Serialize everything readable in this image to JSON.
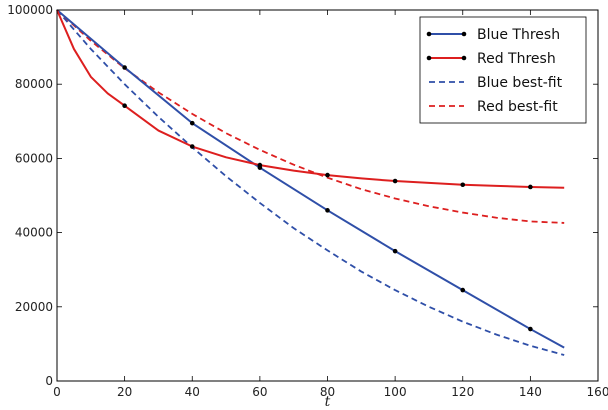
{
  "chart_data": {
    "type": "line",
    "xlabel": "t",
    "ylabel": "",
    "xlim": [
      0,
      160
    ],
    "ylim": [
      0,
      100000
    ],
    "xticks": [
      0,
      20,
      40,
      60,
      80,
      100,
      120,
      140,
      160
    ],
    "yticks": [
      0,
      20000,
      40000,
      60000,
      80000,
      100000
    ],
    "grid": false,
    "legend_position": "top-right",
    "series": [
      {
        "name": "Blue Thresh",
        "style": "solid",
        "color": "#2F4FA8",
        "markers": true,
        "x": [
          0,
          20,
          40,
          60,
          80,
          100,
          120,
          140,
          150
        ],
        "y": [
          100000,
          84500,
          69500,
          57500,
          46000,
          35000,
          24500,
          14000,
          9000
        ],
        "marker_x": [
          20,
          40,
          60,
          80,
          100,
          120,
          140
        ]
      },
      {
        "name": "Red Thresh",
        "style": "solid",
        "color": "#DD1F1F",
        "markers": true,
        "x": [
          0,
          5,
          10,
          15,
          20,
          30,
          40,
          50,
          60,
          70,
          80,
          90,
          100,
          110,
          120,
          130,
          140,
          150
        ],
        "y": [
          100000,
          89500,
          82000,
          77500,
          74200,
          67500,
          63200,
          60300,
          58200,
          56700,
          55500,
          54600,
          53900,
          53400,
          52900,
          52600,
          52300,
          52100
        ],
        "marker_x": [
          20,
          40,
          60,
          80,
          100,
          120,
          140
        ]
      },
      {
        "name": "Blue best-fit",
        "style": "dashed",
        "color": "#2F4FA8",
        "markers": false,
        "x": [
          0,
          10,
          20,
          30,
          40,
          50,
          60,
          70,
          80,
          90,
          100,
          110,
          120,
          130,
          140,
          150
        ],
        "y": [
          100000,
          89500,
          80000,
          71200,
          63000,
          55200,
          48000,
          41200,
          35200,
          29500,
          24500,
          20000,
          16000,
          12500,
          9500,
          7000
        ]
      },
      {
        "name": "Red best-fit",
        "style": "dashed",
        "color": "#DD1F1F",
        "markers": false,
        "x": [
          0,
          10,
          20,
          30,
          40,
          50,
          60,
          70,
          80,
          90,
          100,
          110,
          120,
          130,
          140,
          150
        ],
        "y": [
          100000,
          91700,
          84300,
          77800,
          72000,
          66800,
          62300,
          58300,
          54800,
          51700,
          49200,
          47100,
          45400,
          44000,
          43000,
          42600
        ]
      }
    ]
  }
}
